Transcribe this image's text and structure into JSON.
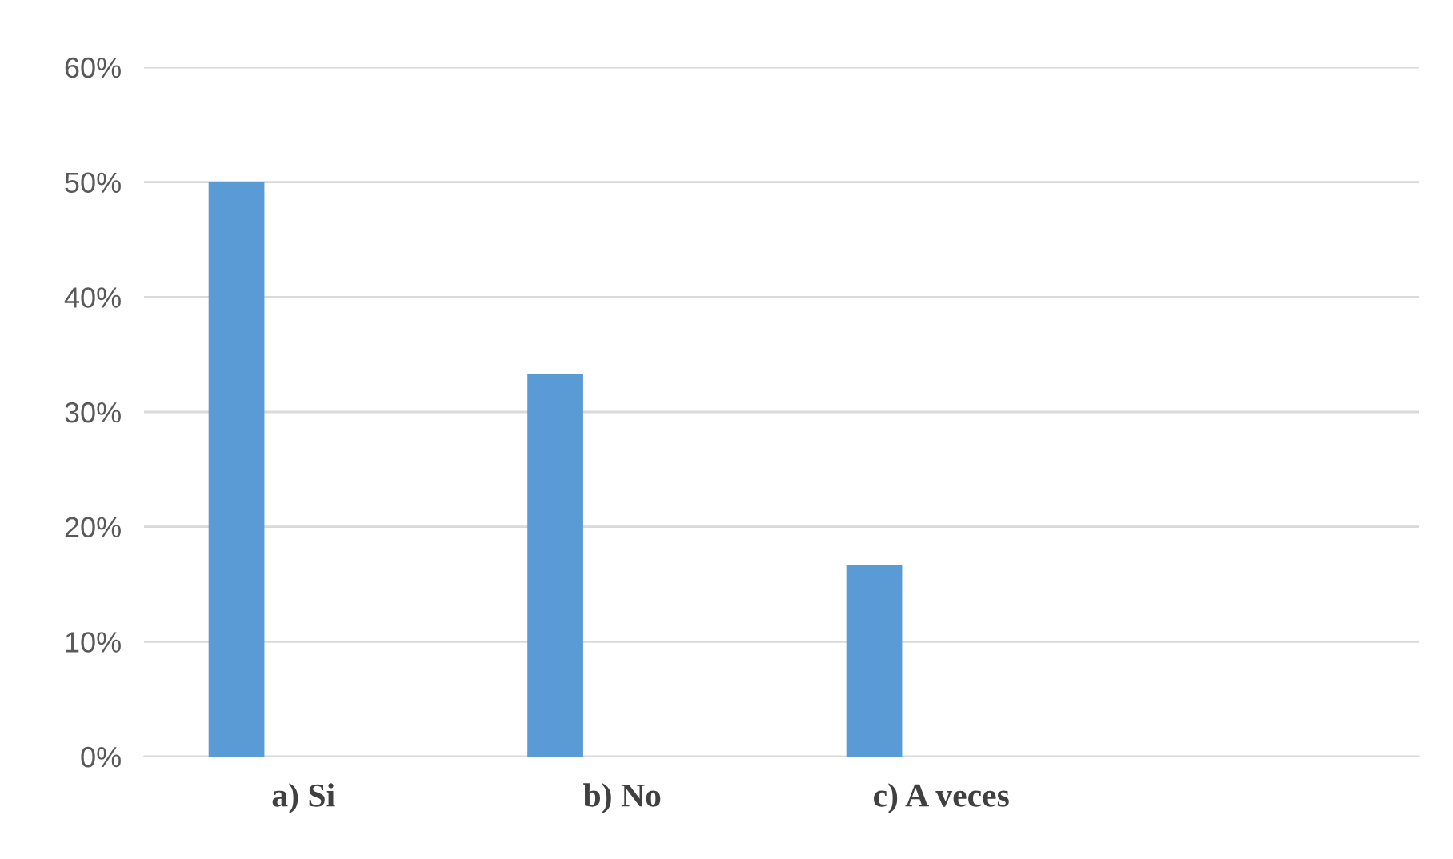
{
  "chart_data": {
    "type": "bar",
    "categories": [
      "a) Si",
      "b) No",
      "c) A veces",
      null
    ],
    "values": [
      50,
      33.3,
      16.7,
      null
    ],
    "color": "#5b9bd5",
    "ylim": [
      0,
      60
    ],
    "yticks": [
      {
        "value": 0,
        "label": "0%"
      },
      {
        "value": 10,
        "label": "10%"
      },
      {
        "value": 20,
        "label": "20%"
      },
      {
        "value": 30,
        "label": "30%"
      },
      {
        "value": 40,
        "label": "40%"
      },
      {
        "value": 50,
        "label": "50%"
      },
      {
        "value": 60,
        "label": "60%"
      }
    ],
    "grid": "y",
    "legend": false
  }
}
